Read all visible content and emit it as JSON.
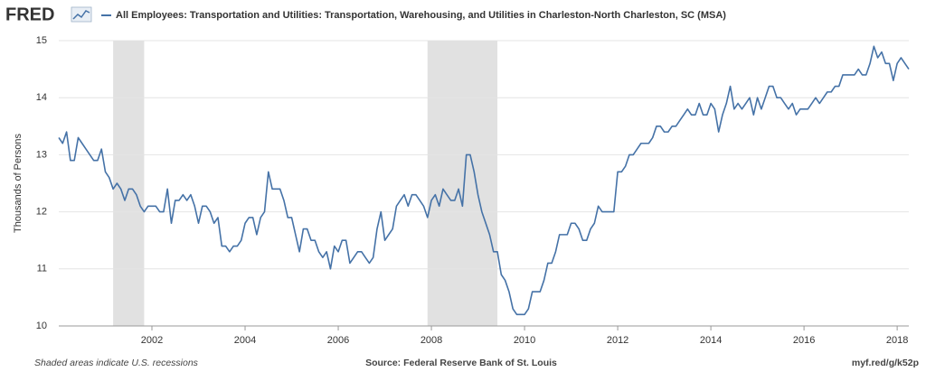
{
  "logo": "FRED",
  "chart_data": {
    "type": "line",
    "ylabel": "Thousands of Persons",
    "source": "Source: Federal Reserve Bank of St. Louis",
    "note": "Shaded areas indicate U.S. recessions",
    "link": "myf.red/g/k52p",
    "xlim": [
      2000,
      2018.25
    ],
    "xticks": [
      2002,
      2004,
      2006,
      2008,
      2010,
      2012,
      2014,
      2016,
      2018
    ],
    "ylim": [
      10,
      15
    ],
    "yticks": [
      10,
      11,
      12,
      13,
      14,
      15
    ],
    "grid": true,
    "recessions": [
      [
        2001.167,
        2001.833
      ],
      [
        2007.917,
        2009.417
      ]
    ],
    "recession_color": "#e1e1e1",
    "x": [
      2000,
      2000.083,
      2000.167,
      2000.25,
      2000.333,
      2000.417,
      2000.5,
      2000.583,
      2000.667,
      2000.75,
      2000.833,
      2000.917,
      2001,
      2001.083,
      2001.167,
      2001.25,
      2001.333,
      2001.417,
      2001.5,
      2001.583,
      2001.667,
      2001.75,
      2001.833,
      2001.917,
      2002,
      2002.083,
      2002.167,
      2002.25,
      2002.333,
      2002.417,
      2002.5,
      2002.583,
      2002.667,
      2002.75,
      2002.833,
      2002.917,
      2003,
      2003.083,
      2003.167,
      2003.25,
      2003.333,
      2003.417,
      2003.5,
      2003.583,
      2003.667,
      2003.75,
      2003.833,
      2003.917,
      2004,
      2004.083,
      2004.167,
      2004.25,
      2004.333,
      2004.417,
      2004.5,
      2004.583,
      2004.667,
      2004.75,
      2004.833,
      2004.917,
      2005,
      2005.083,
      2005.167,
      2005.25,
      2005.333,
      2005.417,
      2005.5,
      2005.583,
      2005.667,
      2005.75,
      2005.833,
      2005.917,
      2006,
      2006.083,
      2006.167,
      2006.25,
      2006.333,
      2006.417,
      2006.5,
      2006.583,
      2006.667,
      2006.75,
      2006.833,
      2006.917,
      2007,
      2007.083,
      2007.167,
      2007.25,
      2007.333,
      2007.417,
      2007.5,
      2007.583,
      2007.667,
      2007.75,
      2007.833,
      2007.917,
      2008,
      2008.083,
      2008.167,
      2008.25,
      2008.333,
      2008.417,
      2008.5,
      2008.583,
      2008.667,
      2008.75,
      2008.833,
      2008.917,
      2009,
      2009.083,
      2009.167,
      2009.25,
      2009.333,
      2009.417,
      2009.5,
      2009.583,
      2009.667,
      2009.75,
      2009.833,
      2009.917,
      2010,
      2010.083,
      2010.167,
      2010.25,
      2010.333,
      2010.417,
      2010.5,
      2010.583,
      2010.667,
      2010.75,
      2010.833,
      2010.917,
      2011,
      2011.083,
      2011.167,
      2011.25,
      2011.333,
      2011.417,
      2011.5,
      2011.583,
      2011.667,
      2011.75,
      2011.833,
      2011.917,
      2012,
      2012.083,
      2012.167,
      2012.25,
      2012.333,
      2012.417,
      2012.5,
      2012.583,
      2012.667,
      2012.75,
      2012.833,
      2012.917,
      2013,
      2013.083,
      2013.167,
      2013.25,
      2013.333,
      2013.417,
      2013.5,
      2013.583,
      2013.667,
      2013.75,
      2013.833,
      2013.917,
      2014,
      2014.083,
      2014.167,
      2014.25,
      2014.333,
      2014.417,
      2014.5,
      2014.583,
      2014.667,
      2014.75,
      2014.833,
      2014.917,
      2015,
      2015.083,
      2015.167,
      2015.25,
      2015.333,
      2015.417,
      2015.5,
      2015.583,
      2015.667,
      2015.75,
      2015.833,
      2015.917,
      2016,
      2016.083,
      2016.167,
      2016.25,
      2016.333,
      2016.417,
      2016.5,
      2016.583,
      2016.667,
      2016.75,
      2016.833,
      2016.917,
      2017,
      2017.083,
      2017.167,
      2017.25,
      2017.333,
      2017.417,
      2017.5,
      2017.583,
      2017.667,
      2017.75,
      2017.833,
      2017.917,
      2018,
      2018.083,
      2018.167,
      2018.25
    ],
    "series": [
      {
        "name": "All Employees: Transportation and Utilities: Transportation, Warehousing, and Utilities in Charleston-North Charleston, SC (MSA)",
        "color": "#4572a7",
        "values": [
          13.3,
          13.2,
          13.4,
          12.9,
          12.9,
          13.3,
          13.2,
          13.1,
          13.0,
          12.9,
          12.9,
          13.1,
          12.7,
          12.6,
          12.4,
          12.5,
          12.4,
          12.2,
          12.4,
          12.4,
          12.3,
          12.1,
          12.0,
          12.1,
          12.1,
          12.1,
          12.0,
          12.0,
          12.4,
          11.8,
          12.2,
          12.2,
          12.3,
          12.2,
          12.3,
          12.1,
          11.8,
          12.1,
          12.1,
          12.0,
          11.8,
          11.9,
          11.4,
          11.4,
          11.3,
          11.4,
          11.4,
          11.5,
          11.8,
          11.9,
          11.9,
          11.6,
          11.9,
          12.0,
          12.7,
          12.4,
          12.4,
          12.4,
          12.2,
          11.9,
          11.9,
          11.6,
          11.3,
          11.7,
          11.7,
          11.5,
          11.5,
          11.3,
          11.2,
          11.3,
          11.0,
          11.4,
          11.3,
          11.5,
          11.5,
          11.1,
          11.2,
          11.3,
          11.3,
          11.2,
          11.1,
          11.2,
          11.7,
          12.0,
          11.5,
          11.6,
          11.7,
          12.1,
          12.2,
          12.3,
          12.1,
          12.3,
          12.3,
          12.2,
          12.1,
          11.9,
          12.2,
          12.3,
          12.1,
          12.4,
          12.3,
          12.2,
          12.2,
          12.4,
          12.1,
          13.0,
          13.0,
          12.7,
          12.3,
          12.0,
          11.8,
          11.6,
          11.3,
          11.3,
          10.9,
          10.8,
          10.6,
          10.3,
          10.2,
          10.2,
          10.2,
          10.3,
          10.6,
          10.6,
          10.6,
          10.8,
          11.1,
          11.1,
          11.3,
          11.6,
          11.6,
          11.6,
          11.8,
          11.8,
          11.7,
          11.5,
          11.5,
          11.7,
          11.8,
          12.1,
          12.0,
          12.0,
          12.0,
          12.0,
          12.7,
          12.7,
          12.8,
          13.0,
          13.0,
          13.1,
          13.2,
          13.2,
          13.2,
          13.3,
          13.5,
          13.5,
          13.4,
          13.4,
          13.5,
          13.5,
          13.6,
          13.7,
          13.8,
          13.7,
          13.7,
          13.9,
          13.7,
          13.7,
          13.9,
          13.8,
          13.4,
          13.7,
          13.9,
          14.2,
          13.8,
          13.9,
          13.8,
          13.9,
          14.0,
          13.7,
          14.0,
          13.8,
          14.0,
          14.2,
          14.2,
          14.0,
          14.0,
          13.9,
          13.8,
          13.9,
          13.7,
          13.8,
          13.8,
          13.8,
          13.9,
          14.0,
          13.9,
          14.0,
          14.1,
          14.1,
          14.2,
          14.2,
          14.4,
          14.4,
          14.4,
          14.4,
          14.5,
          14.4,
          14.4,
          14.6,
          14.9,
          14.7,
          14.8,
          14.6,
          14.6,
          14.3,
          14.6,
          14.7,
          14.6,
          14.5
        ]
      }
    ]
  }
}
